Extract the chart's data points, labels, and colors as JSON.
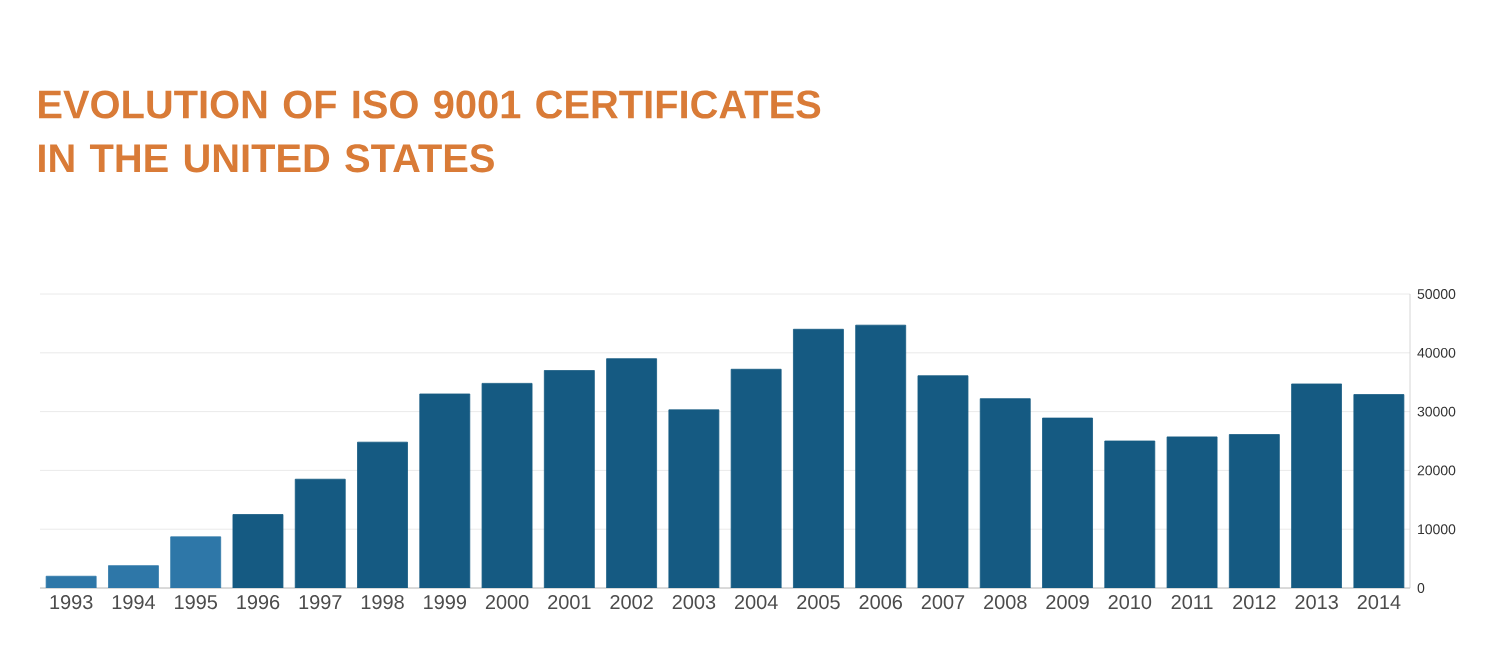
{
  "chart_data": {
    "type": "bar",
    "title": "EVOLUTION OF ISO 9001 CERTIFICATES IN THE UNITED STATES",
    "categories": [
      "1993",
      "1994",
      "1995",
      "1996",
      "1997",
      "1998",
      "1999",
      "2000",
      "2001",
      "2002",
      "2003",
      "2004",
      "2005",
      "2006",
      "2007",
      "2008",
      "2009",
      "2010",
      "2011",
      "2012",
      "2013",
      "2014"
    ],
    "values": [
      2000,
      3800,
      8700,
      12500,
      18500,
      24800,
      33000,
      34800,
      37000,
      39000,
      30300,
      37200,
      44000,
      44700,
      36100,
      32200,
      28900,
      25000,
      25700,
      26100,
      34700,
      32900
    ],
    "colors": [
      "#2e77a8",
      "#2e77a8",
      "#2e77a8",
      "#155a82",
      "#155a82",
      "#155a82",
      "#155a82",
      "#155a82",
      "#155a82",
      "#155a82",
      "#155a82",
      "#155a82",
      "#155a82",
      "#155a82",
      "#155a82",
      "#155a82",
      "#155a82",
      "#155a82",
      "#155a82",
      "#155a82",
      "#155a82",
      "#155a82"
    ],
    "ylim": [
      0,
      50000
    ],
    "yticks": [
      0,
      10000,
      20000,
      30000,
      40000,
      50000
    ],
    "grid": "y"
  }
}
